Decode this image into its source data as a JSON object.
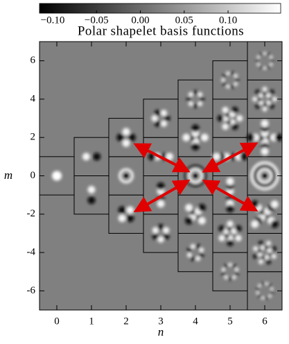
{
  "chart_data": {
    "type": "grid",
    "title": "Polar shapelet basis functions",
    "x_label": "n",
    "y_label": "m",
    "xlim": [
      -0.5,
      6.5
    ],
    "ylim": [
      -7,
      7
    ],
    "xticks": [
      0,
      1,
      2,
      3,
      4,
      5,
      6
    ],
    "yticks": [
      -6,
      -4,
      -2,
      0,
      2,
      4,
      6
    ],
    "n": [
      0,
      1,
      1,
      2,
      2,
      2,
      3,
      3,
      3,
      3,
      4,
      4,
      4,
      4,
      4,
      5,
      5,
      5,
      5,
      5,
      5,
      6,
      6,
      6,
      6,
      6,
      6,
      6
    ],
    "m": [
      0,
      -1,
      1,
      -2,
      0,
      2,
      -3,
      -1,
      1,
      3,
      -4,
      -2,
      0,
      2,
      4,
      -5,
      -3,
      -1,
      1,
      3,
      5,
      -6,
      -4,
      -2,
      0,
      2,
      4,
      6
    ],
    "colorbar": {
      "lim": [
        -0.115,
        0.16
      ],
      "ticks": [
        {
          "value": -0.1,
          "label": "−0.10"
        },
        {
          "value": -0.05,
          "label": "−0.05"
        },
        {
          "value": 0,
          "label": "0.00"
        },
        {
          "value": 0.05,
          "label": "0.05"
        },
        {
          "value": 0.1,
          "label": "0.10"
        }
      ]
    }
  }
}
